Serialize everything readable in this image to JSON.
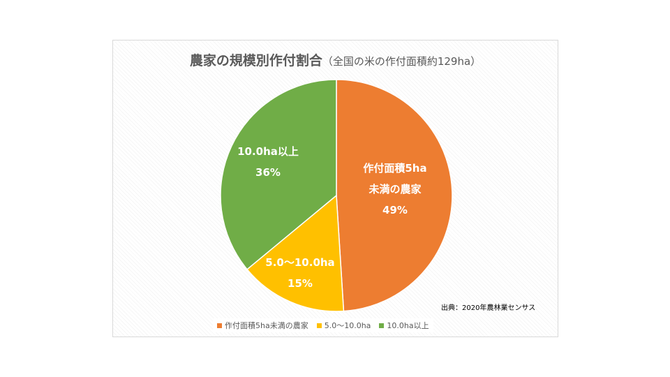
{
  "chart_data": {
    "type": "pie",
    "title": "農家の規模別作付割合",
    "subtitle": "（全国の米の作付面積約129ha）",
    "slices": [
      {
        "name": "作付面積5ha未満の農家",
        "label_lines": [
          "作付面積5ha",
          "未満の農家",
          "49%"
        ],
        "value": 49,
        "color": "#ED7D31"
      },
      {
        "name": "5.0〜10.0ha",
        "label_lines": [
          "5.0〜10.0ha",
          "15%"
        ],
        "value": 15,
        "color": "#FFC000"
      },
      {
        "name": "10.0ha以上",
        "label_lines": [
          "10.0ha以上",
          "36%"
        ],
        "value": 36,
        "color": "#70AD47"
      }
    ],
    "legend_position": "bottom",
    "source": "出典：2020年農林業センサス"
  }
}
